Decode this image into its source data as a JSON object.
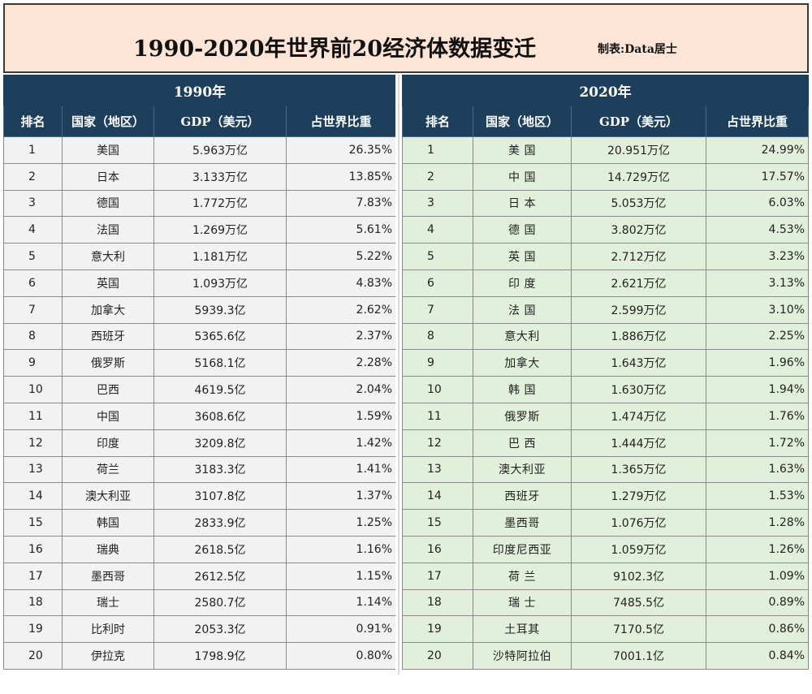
{
  "header": {
    "title": "1990-2020年世界前20经济体数据变迁",
    "author": "制表:Data居士"
  },
  "columns": [
    "排名",
    "国家（地区）",
    "GDP（美元）",
    "占世界比重"
  ],
  "panels": [
    {
      "year": "1990年",
      "rows": [
        {
          "rank": "1",
          "country": "美国",
          "gdp": "5.963万亿",
          "share": "26.35%"
        },
        {
          "rank": "2",
          "country": "日本",
          "gdp": "3.133万亿",
          "share": "13.85%"
        },
        {
          "rank": "3",
          "country": "德国",
          "gdp": "1.772万亿",
          "share": "7.83%"
        },
        {
          "rank": "4",
          "country": "法国",
          "gdp": "1.269万亿",
          "share": "5.61%"
        },
        {
          "rank": "5",
          "country": "意大利",
          "gdp": "1.181万亿",
          "share": "5.22%"
        },
        {
          "rank": "6",
          "country": "英国",
          "gdp": "1.093万亿",
          "share": "4.83%"
        },
        {
          "rank": "7",
          "country": "加拿大",
          "gdp": "5939.3亿",
          "share": "2.62%"
        },
        {
          "rank": "8",
          "country": "西班牙",
          "gdp": "5365.6亿",
          "share": "2.37%"
        },
        {
          "rank": "9",
          "country": "俄罗斯",
          "gdp": "5168.1亿",
          "share": "2.28%"
        },
        {
          "rank": "10",
          "country": "巴西",
          "gdp": "4619.5亿",
          "share": "2.04%"
        },
        {
          "rank": "11",
          "country": "中国",
          "gdp": "3608.6亿",
          "share": "1.59%"
        },
        {
          "rank": "12",
          "country": "印度",
          "gdp": "3209.8亿",
          "share": "1.42%"
        },
        {
          "rank": "13",
          "country": "荷兰",
          "gdp": "3183.3亿",
          "share": "1.41%"
        },
        {
          "rank": "14",
          "country": "澳大利亚",
          "gdp": "3107.8亿",
          "share": "1.37%"
        },
        {
          "rank": "15",
          "country": "韩国",
          "gdp": "2833.9亿",
          "share": "1.25%"
        },
        {
          "rank": "16",
          "country": "瑞典",
          "gdp": "2618.5亿",
          "share": "1.16%"
        },
        {
          "rank": "17",
          "country": "墨西哥",
          "gdp": "2612.5亿",
          "share": "1.15%"
        },
        {
          "rank": "18",
          "country": "瑞士",
          "gdp": "2580.7亿",
          "share": "1.14%"
        },
        {
          "rank": "19",
          "country": "比利时",
          "gdp": "2053.3亿",
          "share": "0.91%"
        },
        {
          "rank": "20",
          "country": "伊拉克",
          "gdp": "1798.9亿",
          "share": "0.80%"
        }
      ]
    },
    {
      "year": "2020年",
      "rows": [
        {
          "rank": "1",
          "country": "美 国",
          "gdp": "20.951万亿",
          "share": "24.99%"
        },
        {
          "rank": "2",
          "country": "中 国",
          "gdp": "14.729万亿",
          "share": "17.57%"
        },
        {
          "rank": "3",
          "country": "日 本",
          "gdp": "5.053万亿",
          "share": "6.03%"
        },
        {
          "rank": "4",
          "country": "德 国",
          "gdp": "3.802万亿",
          "share": "4.53%"
        },
        {
          "rank": "5",
          "country": "英 国",
          "gdp": "2.712万亿",
          "share": "3.23%"
        },
        {
          "rank": "6",
          "country": "印 度",
          "gdp": "2.621万亿",
          "share": "3.13%"
        },
        {
          "rank": "7",
          "country": "法 国",
          "gdp": "2.599万亿",
          "share": "3.10%"
        },
        {
          "rank": "8",
          "country": "意大利",
          "gdp": "1.886万亿",
          "share": "2.25%"
        },
        {
          "rank": "9",
          "country": "加拿大",
          "gdp": "1.643万亿",
          "share": "1.96%"
        },
        {
          "rank": "10",
          "country": "韩 国",
          "gdp": "1.630万亿",
          "share": "1.94%"
        },
        {
          "rank": "11",
          "country": "俄罗斯",
          "gdp": "1.474万亿",
          "share": "1.76%"
        },
        {
          "rank": "12",
          "country": "巴 西",
          "gdp": "1.444万亿",
          "share": "1.72%"
        },
        {
          "rank": "13",
          "country": "澳大利亚",
          "gdp": "1.365万亿",
          "share": "1.63%"
        },
        {
          "rank": "14",
          "country": "西班牙",
          "gdp": "1.279万亿",
          "share": "1.53%"
        },
        {
          "rank": "15",
          "country": "墨西哥",
          "gdp": "1.076万亿",
          "share": "1.28%"
        },
        {
          "rank": "16",
          "country": "印度尼西亚",
          "gdp": "1.059万亿",
          "share": "1.26%"
        },
        {
          "rank": "17",
          "country": "荷 兰",
          "gdp": "9102.3亿",
          "share": "1.09%"
        },
        {
          "rank": "18",
          "country": "瑞 士",
          "gdp": "7485.5亿",
          "share": "0.89%"
        },
        {
          "rank": "19",
          "country": "土耳其",
          "gdp": "7170.5亿",
          "share": "0.86%"
        },
        {
          "rank": "20",
          "country": "沙特阿拉伯",
          "gdp": "7001.1亿",
          "share": "0.84%"
        }
      ]
    }
  ]
}
